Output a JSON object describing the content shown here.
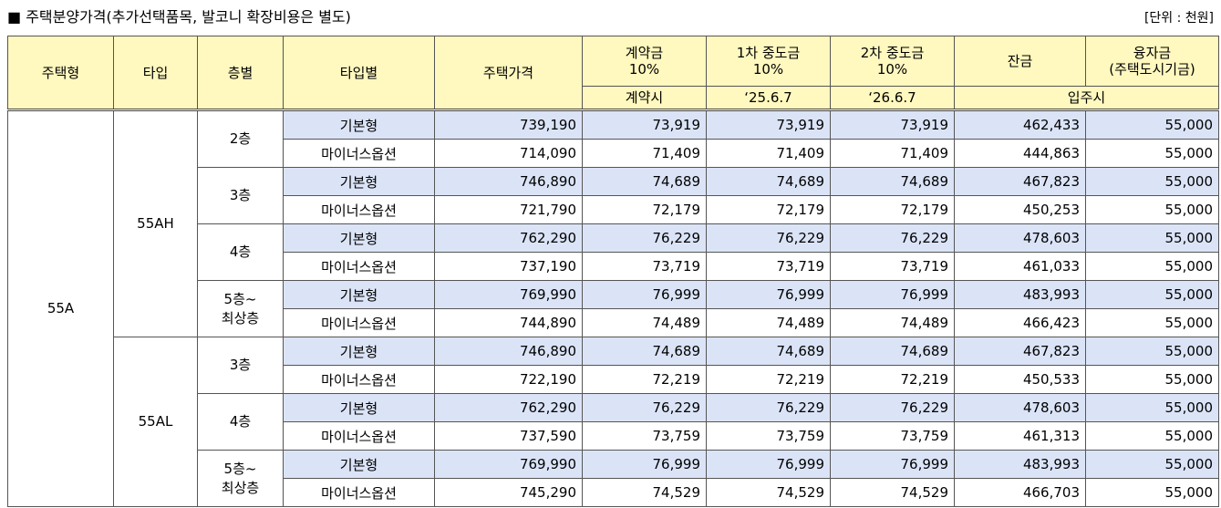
{
  "title": "■ 주택분양가격(추가선택품목, 발코니 확장비용은 별도)",
  "unit": "[단위 : 천원]",
  "headers": {
    "house_type": "주택형",
    "type": "타입",
    "floor": "층별",
    "type_by": "타입별",
    "price": "주택가격",
    "deposit_l1": "계약금",
    "deposit_l2": "10%",
    "mid1_l1": "1차 중도금",
    "mid1_l2": "10%",
    "mid2_l1": "2차 중도금",
    "mid2_l2": "10%",
    "balance": "잔금",
    "loan_l1": "융자금",
    "loan_l2": "(주택도시기금)",
    "when_deposit": "계약시",
    "when_mid1": "‘25.6.7",
    "when_mid2": "‘26.6.7",
    "when_movein": "입주시"
  },
  "groups": {
    "house": "55A",
    "type_ah": "55AH",
    "type_al": "55AL",
    "f2": "2층",
    "f3a": "3층",
    "f4a": "4층",
    "f5a_l1": "5층~",
    "f5a_l2": "최상층",
    "f3b": "3층",
    "f4b": "4층",
    "f5b_l1": "5층~",
    "f5b_l2": "최상층"
  },
  "rows": [
    {
      "variant": "기본형",
      "price": "739,190",
      "deposit": "73,919",
      "mid1": "73,919",
      "mid2": "73,919",
      "balance": "462,433",
      "loan": "55,000"
    },
    {
      "variant": "마이너스옵션",
      "price": "714,090",
      "deposit": "71,409",
      "mid1": "71,409",
      "mid2": "71,409",
      "balance": "444,863",
      "loan": "55,000"
    },
    {
      "variant": "기본형",
      "price": "746,890",
      "deposit": "74,689",
      "mid1": "74,689",
      "mid2": "74,689",
      "balance": "467,823",
      "loan": "55,000"
    },
    {
      "variant": "마이너스옵션",
      "price": "721,790",
      "deposit": "72,179",
      "mid1": "72,179",
      "mid2": "72,179",
      "balance": "450,253",
      "loan": "55,000"
    },
    {
      "variant": "기본형",
      "price": "762,290",
      "deposit": "76,229",
      "mid1": "76,229",
      "mid2": "76,229",
      "balance": "478,603",
      "loan": "55,000"
    },
    {
      "variant": "마이너스옵션",
      "price": "737,190",
      "deposit": "73,719",
      "mid1": "73,719",
      "mid2": "73,719",
      "balance": "461,033",
      "loan": "55,000"
    },
    {
      "variant": "기본형",
      "price": "769,990",
      "deposit": "76,999",
      "mid1": "76,999",
      "mid2": "76,999",
      "balance": "483,993",
      "loan": "55,000"
    },
    {
      "variant": "마이너스옵션",
      "price": "744,890",
      "deposit": "74,489",
      "mid1": "74,489",
      "mid2": "74,489",
      "balance": "466,423",
      "loan": "55,000"
    },
    {
      "variant": "기본형",
      "price": "746,890",
      "deposit": "74,689",
      "mid1": "74,689",
      "mid2": "74,689",
      "balance": "467,823",
      "loan": "55,000"
    },
    {
      "variant": "마이너스옵션",
      "price": "722,190",
      "deposit": "72,219",
      "mid1": "72,219",
      "mid2": "72,219",
      "balance": "450,533",
      "loan": "55,000"
    },
    {
      "variant": "기본형",
      "price": "762,290",
      "deposit": "76,229",
      "mid1": "76,229",
      "mid2": "76,229",
      "balance": "478,603",
      "loan": "55,000"
    },
    {
      "variant": "마이너스옵션",
      "price": "737,590",
      "deposit": "73,759",
      "mid1": "73,759",
      "mid2": "73,759",
      "balance": "461,313",
      "loan": "55,000"
    },
    {
      "variant": "기본형",
      "price": "769,990",
      "deposit": "76,999",
      "mid1": "76,999",
      "mid2": "76,999",
      "balance": "483,993",
      "loan": "55,000"
    },
    {
      "variant": "마이너스옵션",
      "price": "745,290",
      "deposit": "74,529",
      "mid1": "74,529",
      "mid2": "74,529",
      "balance": "466,703",
      "loan": "55,000"
    }
  ],
  "colors": {
    "header_bg": "#fff8bf",
    "basic_row_bg": "#dbe4f7",
    "border": "#555555"
  }
}
